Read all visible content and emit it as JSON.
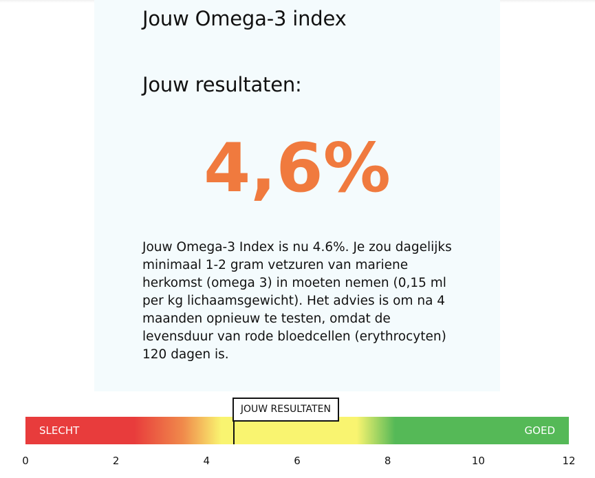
{
  "card": {
    "title": "Jouw Omega-3 index",
    "subtitle": "Jouw resultaten:",
    "result_display": "4,6%",
    "description": "Jouw Omega-3 Index is nu 4.6%. Je zou dagelijks minimaal 1-2 gram vetzuren van mariene herkomst (omega 3) in moeten nemen (0,15 ml per kg lichaamsgewicht). Het advies is om na 4 maanden opnieuw te testen, omdat de levensduur van rode bloedcellen (erythrocyten) 120 dagen is."
  },
  "scale": {
    "value": 4.6,
    "min": 0,
    "max": 12,
    "label_bad": "SLECHT",
    "label_good": "GOED",
    "marker_label": "JOUW RESULTATEN",
    "ticks": [
      "0",
      "2",
      "4",
      "6",
      "8",
      "10",
      "12"
    ]
  },
  "colors": {
    "result": "#f07a3e",
    "card_background": "#f4fbfd",
    "scale_red": "#e83c3c",
    "scale_orange": "#f08a4b",
    "scale_yellow": "#f9f470",
    "scale_green": "#55b957"
  }
}
